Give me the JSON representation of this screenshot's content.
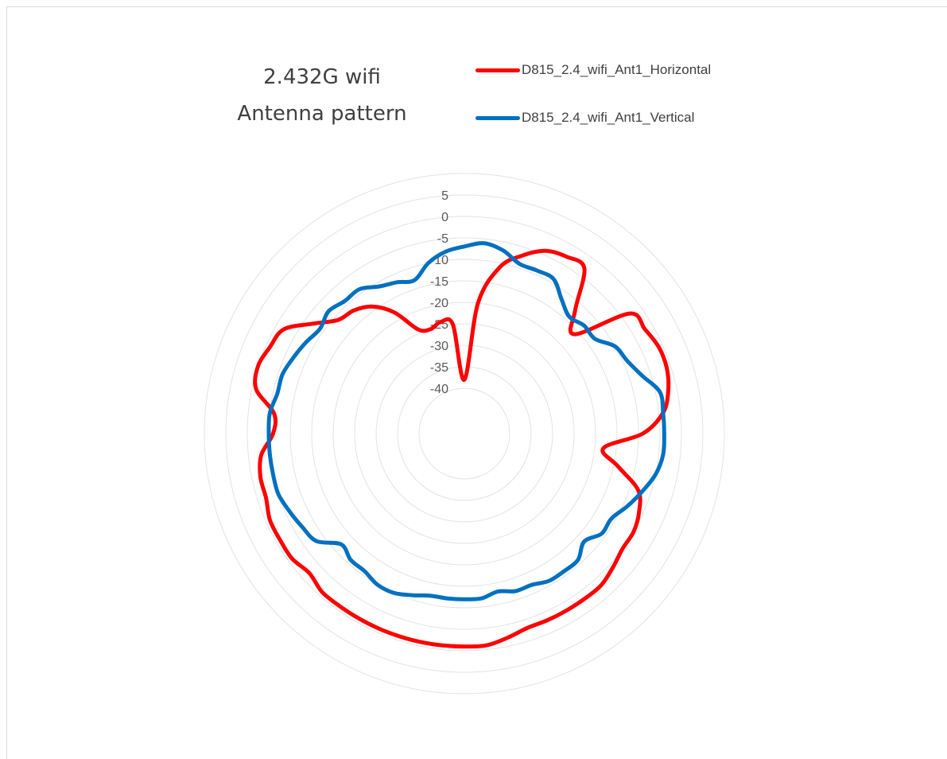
{
  "chart_data": {
    "type": "radar",
    "title": [
      "2.432G wifi",
      "Antenna pattern"
    ],
    "r_ticks": [
      5,
      0,
      -5,
      -10,
      -15,
      -20,
      -25,
      -30,
      -35,
      -40
    ],
    "r_range": [
      -40,
      10
    ],
    "angle_unit": "deg",
    "angle_direction": "clockwise_from_top",
    "legend_position": "top-right",
    "grid": true,
    "series": [
      {
        "name": "D815_2.4_wifi_Ant1_Horizontal",
        "color": "#ff0000",
        "angles": [
          0,
          6,
          12,
          18,
          24,
          30,
          36,
          42,
          48,
          54,
          60,
          66,
          72,
          78,
          84,
          90,
          96,
          102,
          108,
          114,
          120,
          126,
          132,
          138,
          144,
          150,
          156,
          162,
          168,
          174,
          180,
          186,
          192,
          198,
          204,
          210,
          216,
          222,
          228,
          234,
          240,
          246,
          252,
          258,
          264,
          270,
          276,
          282,
          288,
          294,
          300,
          306,
          312,
          318,
          324,
          330,
          336,
          342,
          348,
          354,
          360
        ],
        "values": [
          -38,
          -20,
          -11,
          -7,
          -4,
          -3,
          -3,
          -12,
          -16,
          -3,
          -2,
          -1,
          -1,
          -2,
          -4,
          -9,
          -18,
          -14,
          -8,
          -6,
          -5,
          -5,
          -4,
          -3,
          -3,
          -3,
          -3,
          -3,
          -2,
          -1,
          -1,
          -1,
          -1,
          -1,
          -1,
          -1,
          -1,
          -1,
          -2,
          -1,
          -1,
          -1,
          -2,
          -2,
          -3,
          -6,
          -6,
          -1,
          0,
          -1,
          -2,
          -7,
          -11,
          -12,
          -14,
          -18,
          -24,
          -25,
          -24,
          -25,
          -38
        ]
      },
      {
        "name": "D815_2.4_wifi_Ant1_Vertical",
        "color": "#0070c0",
        "angles": [
          0,
          6,
          12,
          18,
          24,
          30,
          36,
          42,
          48,
          54,
          60,
          66,
          72,
          78,
          84,
          90,
          96,
          102,
          108,
          114,
          120,
          126,
          132,
          138,
          144,
          150,
          156,
          162,
          168,
          174,
          180,
          186,
          192,
          198,
          204,
          210,
          216,
          222,
          228,
          234,
          240,
          246,
          252,
          258,
          264,
          270,
          276,
          282,
          288,
          294,
          300,
          306,
          312,
          318,
          324,
          330,
          336,
          342,
          348,
          354,
          360
        ],
        "values": [
          -7,
          -6,
          -7,
          -9,
          -9,
          -9,
          -12,
          -14,
          -13,
          -13,
          -10,
          -9,
          -7,
          -4,
          -4,
          -4,
          -4,
          -5,
          -7,
          -9,
          -11,
          -11,
          -13,
          -11,
          -11,
          -11,
          -12,
          -12,
          -13,
          -12,
          -12,
          -12,
          -12,
          -11,
          -10,
          -10,
          -11,
          -11,
          -12,
          -8,
          -7,
          -6,
          -5,
          -5,
          -5,
          -5,
          -5,
          -6,
          -6,
          -7,
          -8,
          -9,
          -8,
          -9,
          -9,
          -11,
          -12,
          -13,
          -10,
          -8,
          -7
        ]
      }
    ]
  }
}
